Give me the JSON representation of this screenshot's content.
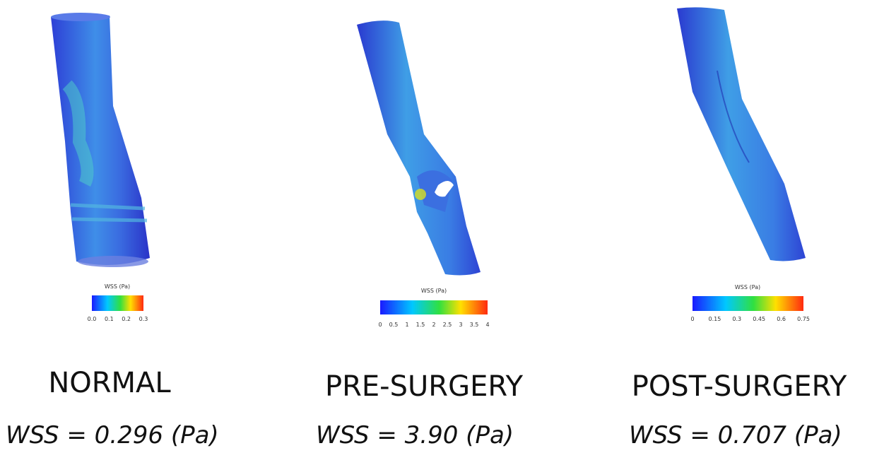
{
  "panels": [
    {
      "title": "NORMAL",
      "wss": "WSS = 0.296 (Pa)",
      "colorbar": {
        "label": "WSS (Pa)",
        "ticks": [
          "0.0",
          "0.1",
          "0.2",
          "0.3"
        ]
      }
    },
    {
      "title": "PRE-SURGERY",
      "wss": "WSS = 3.90 (Pa)",
      "colorbar": {
        "label": "WSS (Pa)",
        "ticks": [
          "0",
          "0.5",
          "1",
          "1.5",
          "2",
          "2.5",
          "3",
          "3.5",
          "4"
        ]
      }
    },
    {
      "title": "POST-SURGERY",
      "wss": "WSS = 0.707 (Pa)",
      "colorbar": {
        "label": "WSS (Pa)",
        "ticks": [
          "0",
          "0.15",
          "0.3",
          "0.45",
          "0.6",
          "0.75"
        ]
      }
    }
  ]
}
